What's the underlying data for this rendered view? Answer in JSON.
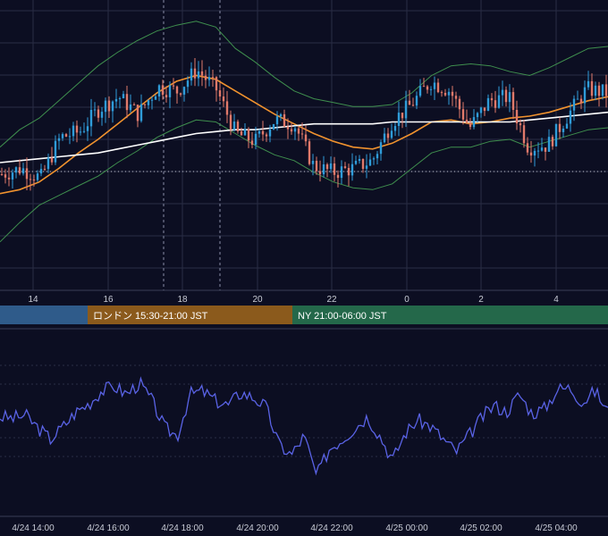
{
  "colors": {
    "background": "#0c0e22",
    "grid": "#2a2d45",
    "candle_up": "#2f9cd9",
    "candle_down": "#e0796a",
    "bollinger": "#3f8f4e",
    "ma_fast": "#f0922e",
    "ma_slow": "#ffffff",
    "oscillator": "#5a63e6",
    "session_tokyo": "#2f5b8a",
    "session_london": "#8b5a1c",
    "session_ny": "#24684a"
  },
  "chart_data": [
    {
      "type": "candlestick",
      "x_tick_labels": [
        "14",
        "16",
        "18",
        "20",
        "22",
        "0",
        "2",
        "4"
      ],
      "series": [
        {
          "kind": "candles",
          "values": [
            1.0,
            1.3,
            0.8,
            2.9,
            3.2,
            4.4,
            5.0,
            4.1,
            5.5,
            5.3,
            6.4,
            5.4,
            3.1,
            2.7,
            3.8,
            3.6,
            1.4,
            1.1,
            1.3,
            1.7,
            3.7,
            4.6,
            5.8,
            5.3,
            3.4,
            4.8,
            5.0,
            2.4,
            2.5,
            4.0,
            5.4,
            5.2
          ]
        },
        {
          "kind": "bollinger_upper",
          "values": [
            2.4,
            3.3,
            3.9,
            4.8,
            5.7,
            6.6,
            7.3,
            7.9,
            8.4,
            8.7,
            8.9,
            8.6,
            7.5,
            6.8,
            6.0,
            5.3,
            4.9,
            4.7,
            4.5,
            4.5,
            4.6,
            5.2,
            6.1,
            6.6,
            6.7,
            6.6,
            6.3,
            6.1,
            6.5,
            7.0,
            7.5,
            7.6
          ]
        },
        {
          "kind": "bollinger_lower",
          "values": [
            -2.5,
            -1.5,
            -0.6,
            -0.1,
            0.4,
            0.9,
            1.6,
            2.2,
            2.9,
            3.4,
            3.8,
            3.7,
            3.1,
            2.5,
            2.0,
            1.7,
            1.1,
            0.6,
            0.3,
            0.2,
            0.5,
            1.3,
            2.1,
            2.4,
            2.4,
            2.7,
            2.8,
            2.4,
            2.7,
            3.0,
            3.3,
            3.4
          ]
        },
        {
          "kind": "ma_fast",
          "values": [
            0.0,
            0.2,
            0.6,
            1.3,
            2.1,
            2.8,
            3.6,
            4.4,
            5.2,
            5.8,
            6.1,
            5.9,
            5.3,
            4.7,
            4.1,
            3.6,
            3.1,
            2.7,
            2.4,
            2.3,
            2.6,
            3.1,
            3.7,
            3.8,
            3.6,
            3.7,
            3.9,
            4.0,
            4.2,
            4.5,
            4.8,
            5.0
          ]
        },
        {
          "kind": "ma_slow",
          "values": [
            1.6,
            1.7,
            1.8,
            1.9,
            2.0,
            2.1,
            2.3,
            2.5,
            2.7,
            2.9,
            3.1,
            3.2,
            3.3,
            3.3,
            3.4,
            3.5,
            3.6,
            3.6,
            3.6,
            3.6,
            3.7,
            3.7,
            3.7,
            3.7,
            3.7,
            3.7,
            3.7,
            3.8,
            3.9,
            4.0,
            4.1,
            4.2
          ]
        }
      ],
      "ylim": [
        -5,
        10
      ]
    },
    {
      "type": "line",
      "series": [
        {
          "values": [
            0.2,
            0.1,
            0.3,
            -0.5,
            -1.2,
            -0.4,
            0.5,
            1.0,
            1.8,
            2.1,
            1.6,
            2.3,
            1.2,
            -0.5,
            -1.0,
            1.6,
            1.8,
            1.2,
            0.9,
            1.7,
            1.4,
            0.8,
            -1.5,
            -2.2,
            -1.0,
            -3.5,
            -1.8,
            -1.2,
            -0.5,
            0.2,
            -1.0,
            -2.5,
            -0.8,
            0.0,
            -0.4,
            -1.2,
            -2.0,
            -1.0,
            0.1,
            0.9,
            0.5,
            1.6,
            0.4,
            0.7,
            1.9,
            2.0,
            1.1,
            1.8,
            0.5
          ]
        }
      ],
      "ylim": [
        -5,
        5
      ]
    }
  ],
  "sessions": [
    {
      "label": ""
    },
    {
      "label": "ロンドン 15:30-21:00 JST"
    },
    {
      "label": "NY 21:00-06:00 JST"
    }
  ],
  "bottom_axis": {
    "labels": [
      "4/24 14:00",
      "4/24 16:00",
      "4/24 18:00",
      "4/24 20:00",
      "4/24 22:00",
      "4/25 00:00",
      "4/25 02:00",
      "4/25 04:00"
    ]
  }
}
